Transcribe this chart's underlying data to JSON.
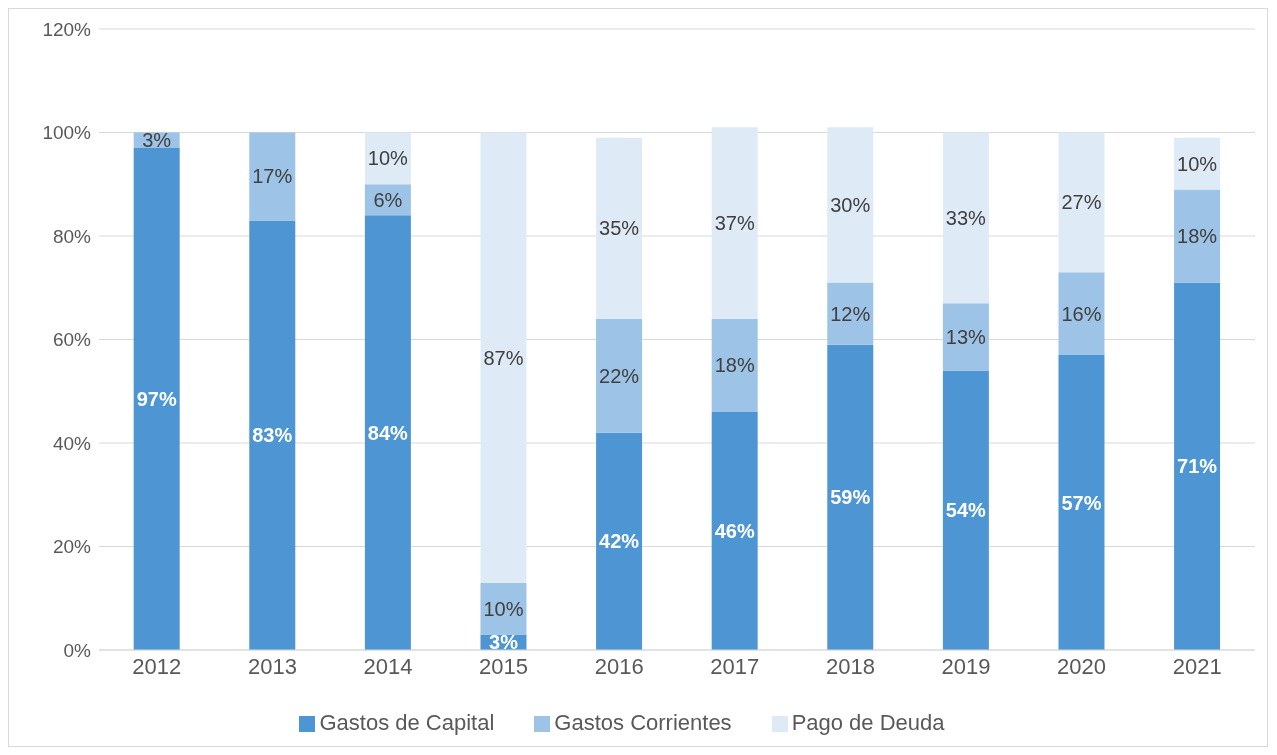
{
  "chart_data": {
    "type": "bar",
    "stacked": true,
    "categories": [
      "2012",
      "2013",
      "2014",
      "2015",
      "2016",
      "2017",
      "2018",
      "2019",
      "2020",
      "2021"
    ],
    "series": [
      {
        "name": "Gastos de Capital",
        "color": "#4e95d3",
        "values": [
          97,
          83,
          84,
          3,
          42,
          46,
          59,
          54,
          57,
          71
        ],
        "value_labels": [
          "97%",
          "83%",
          "84%",
          "3%",
          "42%",
          "46%",
          "59%",
          "54%",
          "57%",
          "71%"
        ]
      },
      {
        "name": "Gastos Corrientes",
        "color": "#9dc3e6",
        "values": [
          3,
          17,
          6,
          10,
          22,
          18,
          12,
          13,
          16,
          18
        ],
        "value_labels": [
          "3%",
          "17%",
          "6%",
          "10%",
          "22%",
          "18%",
          "12%",
          "13%",
          "16%",
          "18%"
        ]
      },
      {
        "name": "Pago de Deuda",
        "color": "#deebf7",
        "values": [
          null,
          null,
          10,
          87,
          35,
          37,
          30,
          33,
          27,
          10
        ],
        "value_labels": [
          null,
          null,
          "10%",
          "87%",
          "35%",
          "37%",
          "30%",
          "33%",
          "27%",
          "10%"
        ]
      }
    ],
    "ylim": [
      0,
      120
    ],
    "yticks": [
      {
        "value": 0,
        "label": "0%"
      },
      {
        "value": 20,
        "label": "20%"
      },
      {
        "value": 40,
        "label": "40%"
      },
      {
        "value": 60,
        "label": "60%"
      },
      {
        "value": 80,
        "label": "80%"
      },
      {
        "value": 100,
        "label": "100%"
      },
      {
        "value": 120,
        "label": "120%"
      }
    ],
    "grid": "y",
    "legend": "bottom"
  }
}
